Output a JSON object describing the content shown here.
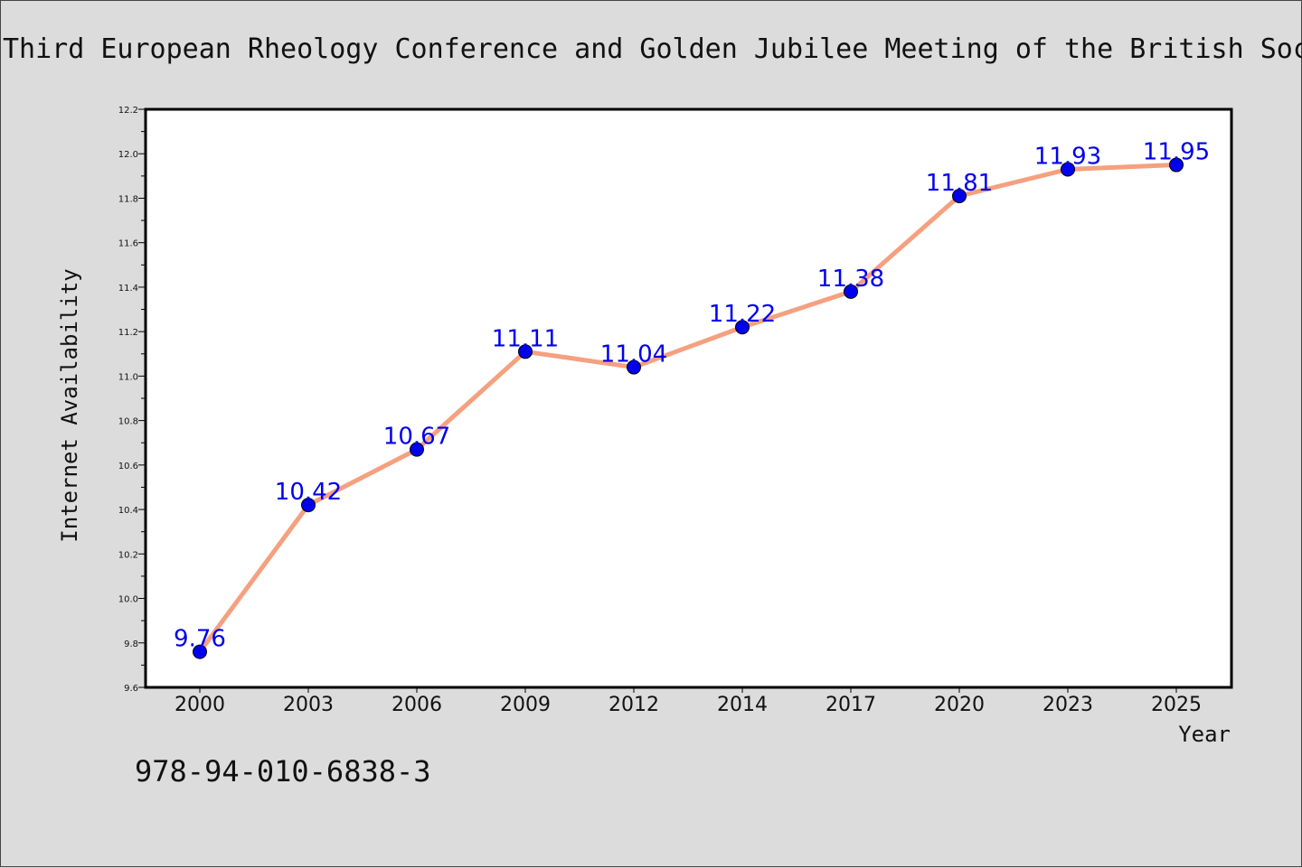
{
  "chart_data": {
    "type": "line",
    "title": "Third European Rheology Conference and Golden Jubilee Meeting of the British Soc",
    "xlabel": "Year",
    "ylabel": "Internet Availability",
    "categories": [
      "2000",
      "2003",
      "2006",
      "2009",
      "2012",
      "2014",
      "2017",
      "2020",
      "2023",
      "2025"
    ],
    "series": [
      {
        "values": [
          9.76,
          10.42,
          10.67,
          11.11,
          11.04,
          11.22,
          11.38,
          11.81,
          11.93,
          11.95
        ],
        "line_color": "#f5a07f",
        "marker_color": "#0000ee"
      }
    ],
    "data_labels": [
      "9.76",
      "10.42",
      "10.67",
      "11.11",
      "11.04",
      "11.22",
      "11.38",
      "11.81",
      "11.93",
      "11.95"
    ],
    "data_label_color": "#0000ee",
    "ylim": [
      9.6,
      12.2
    ],
    "yticks": [
      "9.6",
      "9.8",
      "10.0",
      "10.2",
      "10.4",
      "10.6",
      "10.8",
      "11.0",
      "11.2",
      "11.4",
      "11.6",
      "11.8",
      "12.0",
      "12.2"
    ],
    "grid": false,
    "legend": "none"
  },
  "footnote": "978-94-010-6838-3"
}
